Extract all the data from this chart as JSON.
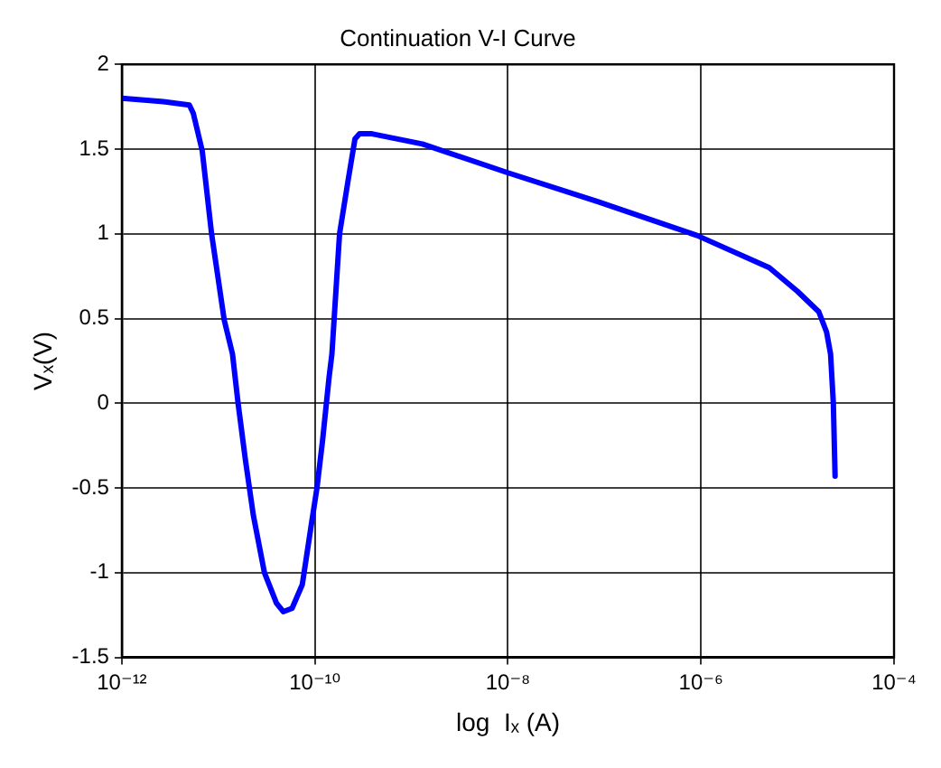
{
  "chart_data": {
    "type": "line",
    "title": "Continuation V-I Curve",
    "xlabel": "log  Iₓ (A)",
    "ylabel": "Vₓ(V)",
    "log": "x",
    "grid": true,
    "legend": false,
    "marker": "none",
    "line_style": "solid",
    "xlim": [
      1e-12,
      0.0001
    ],
    "xticks": [
      {
        "value": 1e-12,
        "label": "10⁻¹²"
      },
      {
        "value": 1e-10,
        "label": "10⁻¹⁰"
      },
      {
        "value": 1e-08,
        "label": "10⁻⁸"
      },
      {
        "value": 1e-06,
        "label": "10⁻⁶"
      },
      {
        "value": 0.0001,
        "label": "10⁻⁴"
      }
    ],
    "ylim": [
      -1.5,
      2
    ],
    "yticks": [
      -1.5,
      -1,
      -0.5,
      0,
      0.5,
      1,
      1.5,
      2
    ],
    "series": [
      {
        "color": "#0000ff",
        "x": [
          1e-12,
          2.7e-12,
          5e-12,
          5.5e-12,
          6.8e-12,
          8.5e-12,
          1.15e-11,
          1.4e-11,
          1.6e-11,
          1.9e-11,
          2.3e-11,
          3e-11,
          4e-11,
          4.7e-11,
          5.8e-11,
          7.4e-11,
          9.1e-11,
          1.05e-10,
          1.2e-10,
          1.4e-10,
          1.5e-10,
          1.8e-10,
          2.2e-10,
          2.6e-10,
          2.9e-10,
          3.9e-10,
          1.3e-09,
          1e-08,
          8.5e-08,
          9.1e-07,
          5.1e-06,
          1e-05,
          1.66e-05,
          2e-05,
          2.2e-05,
          2.35e-05,
          2.45e-05
        ],
        "values": [
          1.8,
          1.78,
          1.76,
          1.71,
          1.49,
          1.0,
          0.49,
          0.29,
          0,
          -0.33,
          -0.66,
          -1.0,
          -1.18,
          -1.23,
          -1.21,
          -1.07,
          -0.73,
          -0.5,
          -0.22,
          0.15,
          0.29,
          1.0,
          1.31,
          1.56,
          1.59,
          1.59,
          1.53,
          1.36,
          1.19,
          0.99,
          0.8,
          0.66,
          0.54,
          0.42,
          0.29,
          0,
          -0.43
        ]
      }
    ]
  }
}
